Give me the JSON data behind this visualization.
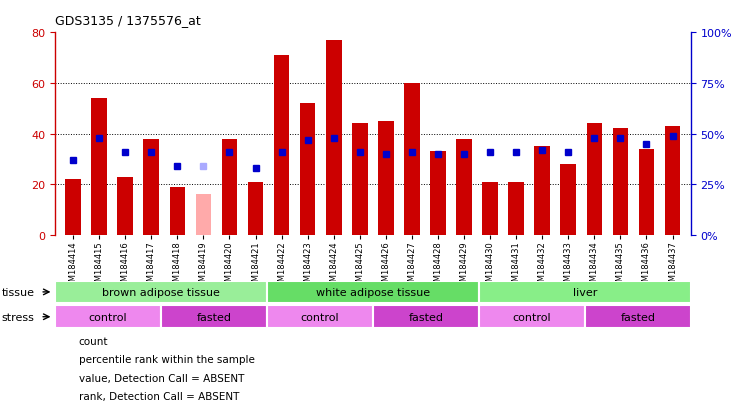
{
  "title": "GDS3135 / 1375576_at",
  "samples": [
    "GSM184414",
    "GSM184415",
    "GSM184416",
    "GSM184417",
    "GSM184418",
    "GSM184419",
    "GSM184420",
    "GSM184421",
    "GSM184422",
    "GSM184423",
    "GSM184424",
    "GSM184425",
    "GSM184426",
    "GSM184427",
    "GSM184428",
    "GSM184429",
    "GSM184430",
    "GSM184431",
    "GSM184432",
    "GSM184433",
    "GSM184434",
    "GSM184435",
    "GSM184436",
    "GSM184437"
  ],
  "count_values": [
    22,
    54,
    23,
    38,
    19,
    16,
    38,
    21,
    71,
    52,
    77,
    44,
    45,
    60,
    33,
    38,
    21,
    21,
    35,
    28,
    44,
    42,
    34,
    43
  ],
  "absent_count": [
    false,
    false,
    false,
    false,
    false,
    true,
    false,
    false,
    false,
    false,
    false,
    false,
    false,
    false,
    false,
    false,
    false,
    false,
    false,
    false,
    false,
    false,
    false,
    false
  ],
  "percentile_values": [
    37,
    48,
    41,
    41,
    34,
    34,
    41,
    33,
    41,
    47,
    48,
    41,
    40,
    41,
    40,
    40,
    41,
    41,
    42,
    41,
    48,
    48,
    45,
    49
  ],
  "absent_percentile": [
    false,
    false,
    false,
    false,
    false,
    true,
    false,
    false,
    false,
    false,
    false,
    false,
    false,
    false,
    false,
    false,
    false,
    false,
    false,
    false,
    false,
    false,
    false,
    false
  ],
  "count_color": "#cc0000",
  "count_absent_color": "#ffaaaa",
  "percentile_color": "#0000cc",
  "percentile_absent_color": "#aaaaff",
  "ylim_left": [
    0,
    80
  ],
  "ylim_right": [
    0,
    100
  ],
  "yticks_left": [
    0,
    20,
    40,
    60,
    80
  ],
  "yticks_right": [
    0,
    25,
    50,
    75,
    100
  ],
  "ytick_labels_right": [
    "0%",
    "25%",
    "50%",
    "75%",
    "100%"
  ],
  "grid_values": [
    20,
    40,
    60
  ],
  "tissue_groups": [
    {
      "label": "brown adipose tissue",
      "start": 0,
      "end": 8,
      "color": "#99ee99"
    },
    {
      "label": "white adipose tissue",
      "start": 8,
      "end": 16,
      "color": "#66dd66"
    },
    {
      "label": "liver",
      "start": 16,
      "end": 24,
      "color": "#88ee88"
    }
  ],
  "stress_groups": [
    {
      "label": "control",
      "start": 0,
      "end": 4,
      "color": "#ee88ee"
    },
    {
      "label": "fasted",
      "start": 4,
      "end": 8,
      "color": "#cc44cc"
    },
    {
      "label": "control",
      "start": 8,
      "end": 12,
      "color": "#ee88ee"
    },
    {
      "label": "fasted",
      "start": 12,
      "end": 16,
      "color": "#cc44cc"
    },
    {
      "label": "control",
      "start": 16,
      "end": 20,
      "color": "#ee88ee"
    },
    {
      "label": "fasted",
      "start": 20,
      "end": 24,
      "color": "#cc44cc"
    }
  ],
  "legend_items": [
    {
      "label": "count",
      "color": "#cc0000"
    },
    {
      "label": "percentile rank within the sample",
      "color": "#0000cc"
    },
    {
      "label": "value, Detection Call = ABSENT",
      "color": "#ffaaaa"
    },
    {
      "label": "rank, Detection Call = ABSENT",
      "color": "#aaaaff"
    }
  ],
  "bg_color": "#ffffff",
  "plot_bg_color": "#ffffff",
  "bar_width": 0.6
}
